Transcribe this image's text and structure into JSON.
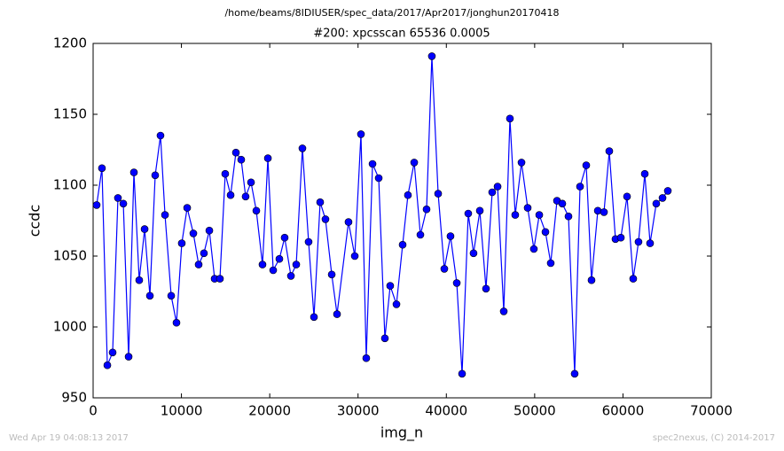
{
  "chart_data": {
    "type": "line",
    "title": "/home/beams/8IDIUSER/spec_data/2017/Apr2017/jonghun20170418",
    "subtitle": "#200: xpcsscan 65536 0.0005",
    "xlabel": "img_n",
    "ylabel": "ccdc",
    "footer_left": "Wed Apr 19 04:08:13 2017",
    "footer_right": "spec2nexus, (C) 2014-2017",
    "color": "#0000ff",
    "markers": true,
    "grid": false,
    "xlim": [
      0,
      70000
    ],
    "xticks": [
      0,
      10000,
      20000,
      30000,
      40000,
      50000,
      60000,
      70000
    ],
    "ylim": [
      950,
      1200
    ],
    "yticks": [
      950,
      1000,
      1050,
      1100,
      1150,
      1200
    ],
    "x": [
      400,
      1000,
      1610,
      2210,
      2810,
      3420,
      4020,
      4620,
      5220,
      5830,
      6430,
      7030,
      7630,
      8140,
      8840,
      9440,
      10040,
      10650,
      11350,
      11950,
      12550,
      13160,
      13760,
      14360,
      14960,
      15570,
      16170,
      16770,
      17270,
      17880,
      18480,
      19180,
      19790,
      20390,
      21090,
      21690,
      22400,
      23000,
      23700,
      24400,
      25010,
      25710,
      26310,
      27020,
      27620,
      28920,
      29630,
      30330,
      30930,
      31640,
      32340,
      33040,
      33640,
      34350,
      35050,
      35650,
      36360,
      37060,
      37760,
      38360,
      39070,
      39770,
      40470,
      41180,
      41780,
      42480,
      43080,
      43790,
      44490,
      45190,
      45800,
      46500,
      47200,
      47800,
      48510,
      49210,
      49910,
      50520,
      51220,
      51820,
      52530,
      53130,
      53830,
      54530,
      55140,
      55840,
      56440,
      57150,
      57850,
      58450,
      59150,
      59760,
      60460,
      61160,
      61760,
      62470,
      63070,
      63770,
      64480,
      65080
    ],
    "values": [
      1086,
      1112,
      973,
      982,
      1091,
      1087,
      979,
      1109,
      1033,
      1069,
      1022,
      1107,
      1135,
      1079,
      1022,
      1003,
      1059,
      1084,
      1066,
      1044,
      1052,
      1068,
      1034,
      1034,
      1108,
      1093,
      1123,
      1118,
      1092,
      1102,
      1082,
      1044,
      1119,
      1040,
      1048,
      1063,
      1036,
      1044,
      1126,
      1060,
      1007,
      1088,
      1076,
      1037,
      1009,
      1074,
      1050,
      1136,
      978,
      1115,
      1105,
      992,
      1029,
      1016,
      1058,
      1093,
      1116,
      1065,
      1083,
      1191,
      1094,
      1041,
      1064,
      1031,
      967,
      1080,
      1052,
      1082,
      1027,
      1095,
      1099,
      1011,
      1147,
      1079,
      1116,
      1084,
      1055,
      1079,
      1067,
      1045,
      1089,
      1087,
      1078,
      967,
      1099,
      1114,
      1033,
      1082,
      1081,
      1124,
      1062,
      1063,
      1092,
      1034,
      1060,
      1108,
      1059,
      1087,
      1091,
      1096
    ]
  }
}
